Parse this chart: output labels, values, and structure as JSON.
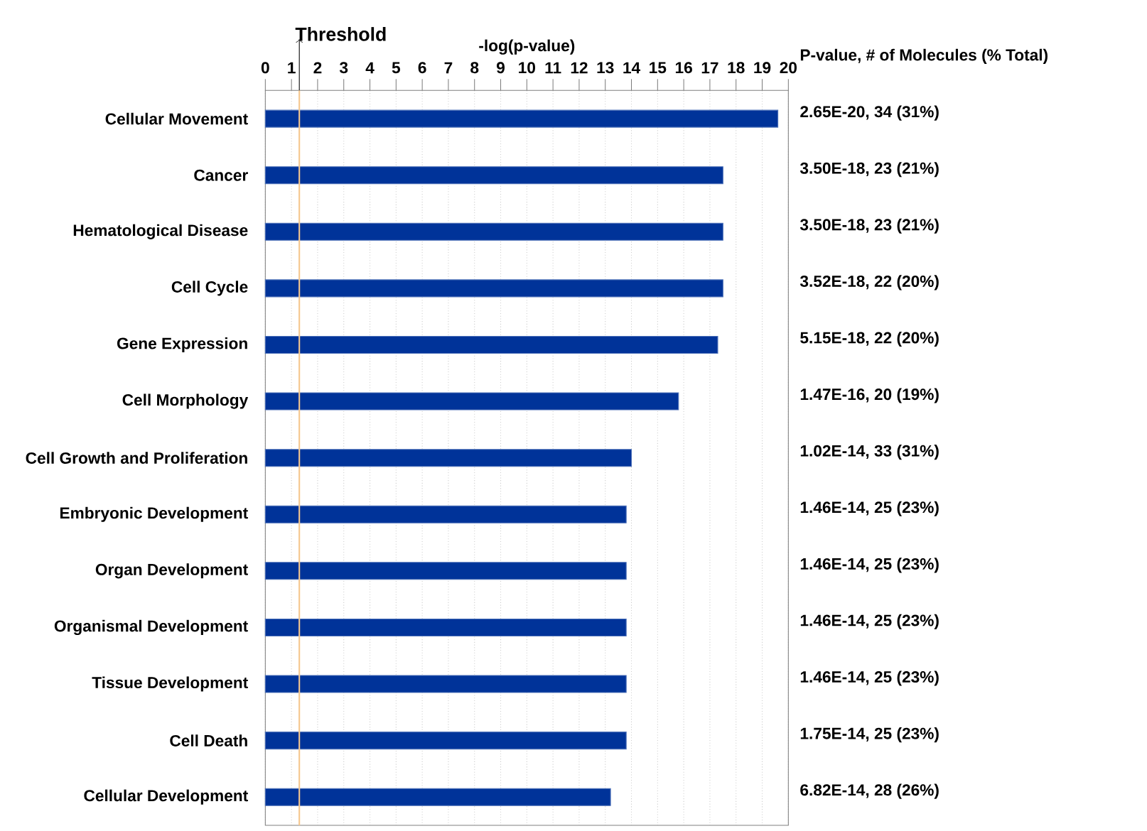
{
  "chart_data": {
    "type": "bar",
    "orientation": "horizontal",
    "xlabel": "-log(p-value)",
    "categories": [
      "Cellular Movement",
      "Cancer",
      "Hematological Disease",
      "Cell Cycle",
      "Gene Expression",
      "Cell Morphology",
      "Cell Growth and Proliferation",
      "Embryonic Development",
      "Organ Development",
      "Organismal Development",
      "Tissue Development",
      "Cell Death",
      "Cellular Development"
    ],
    "values": [
      19.6,
      17.5,
      17.5,
      17.5,
      17.3,
      15.8,
      14.0,
      13.8,
      13.8,
      13.8,
      13.8,
      13.8,
      13.2
    ],
    "color": "#003399",
    "xlim": [
      0,
      20
    ],
    "xticks": [
      0,
      1,
      2,
      3,
      4,
      5,
      6,
      7,
      8,
      9,
      10,
      11,
      12,
      13,
      14,
      15,
      16,
      17,
      18,
      19,
      20
    ],
    "grid": "x",
    "ref_lines": [
      {
        "axis": "x",
        "value": 1.3,
        "label": "Threshold",
        "color": "#f5c78e"
      }
    ],
    "annotations": [
      "P-value, # of Molecules (% Total)",
      "2.65E-20, 34 (31%)",
      "3.50E-18, 23 (21%)",
      "3.50E-18, 23 (21%)",
      "3.52E-18, 22 (20%)",
      "5.15E-18, 22 (20%)",
      "1.47E-16, 20 (19%)",
      "1.02E-14, 33 (31%)",
      "1.46E-14, 25 (23%)",
      "1.46E-14, 25 (23%)",
      "1.46E-14, 25 (23%)",
      "1.46E-14, 25 (23%)",
      "1.75E-14, 25 (23%)",
      "6.82E-14, 28 (26%)"
    ]
  }
}
